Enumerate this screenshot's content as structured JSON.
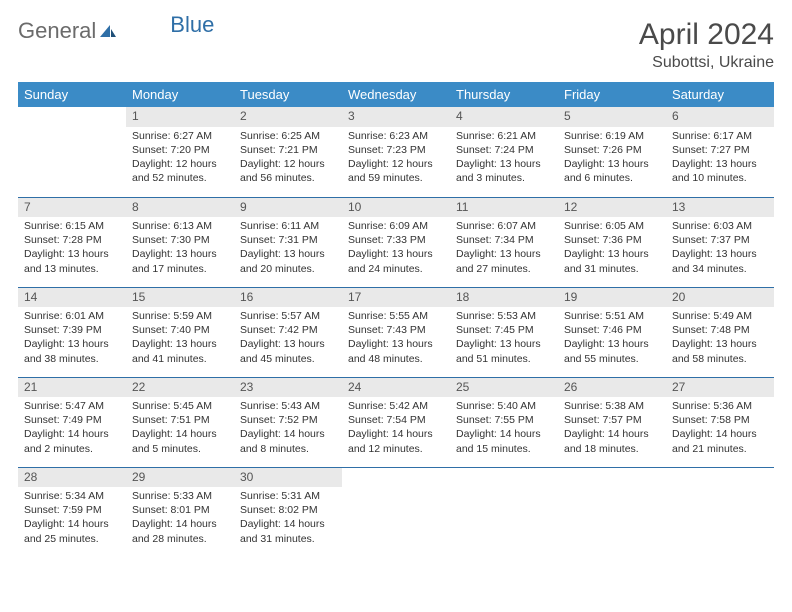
{
  "brand": {
    "word1": "General",
    "word2": "Blue"
  },
  "header": {
    "title": "April 2024",
    "location": "Subottsi, Ukraine"
  },
  "style": {
    "header_bg": "#3b8bc6",
    "header_text": "#ffffff",
    "row_divider": "#2f6fa7",
    "daynum_bg": "#e9e9e9",
    "body_text": "#333333",
    "title_color": "#4a4a4a",
    "logo_gray": "#6b6b6b",
    "logo_blue": "#2f6fa7",
    "title_fontsize": 30,
    "subtitle_fontsize": 16,
    "dayhead_fontsize": 13,
    "daynum_fontsize": 12,
    "cell_fontsize": 10.5
  },
  "weekdays": [
    "Sunday",
    "Monday",
    "Tuesday",
    "Wednesday",
    "Thursday",
    "Friday",
    "Saturday"
  ],
  "weeks": [
    [
      {
        "n": "",
        "lines": []
      },
      {
        "n": "1",
        "lines": [
          "Sunrise: 6:27 AM",
          "Sunset: 7:20 PM",
          "Daylight: 12 hours",
          "and 52 minutes."
        ]
      },
      {
        "n": "2",
        "lines": [
          "Sunrise: 6:25 AM",
          "Sunset: 7:21 PM",
          "Daylight: 12 hours",
          "and 56 minutes."
        ]
      },
      {
        "n": "3",
        "lines": [
          "Sunrise: 6:23 AM",
          "Sunset: 7:23 PM",
          "Daylight: 12 hours",
          "and 59 minutes."
        ]
      },
      {
        "n": "4",
        "lines": [
          "Sunrise: 6:21 AM",
          "Sunset: 7:24 PM",
          "Daylight: 13 hours",
          "and 3 minutes."
        ]
      },
      {
        "n": "5",
        "lines": [
          "Sunrise: 6:19 AM",
          "Sunset: 7:26 PM",
          "Daylight: 13 hours",
          "and 6 minutes."
        ]
      },
      {
        "n": "6",
        "lines": [
          "Sunrise: 6:17 AM",
          "Sunset: 7:27 PM",
          "Daylight: 13 hours",
          "and 10 minutes."
        ]
      }
    ],
    [
      {
        "n": "7",
        "lines": [
          "Sunrise: 6:15 AM",
          "Sunset: 7:28 PM",
          "Daylight: 13 hours",
          "and 13 minutes."
        ]
      },
      {
        "n": "8",
        "lines": [
          "Sunrise: 6:13 AM",
          "Sunset: 7:30 PM",
          "Daylight: 13 hours",
          "and 17 minutes."
        ]
      },
      {
        "n": "9",
        "lines": [
          "Sunrise: 6:11 AM",
          "Sunset: 7:31 PM",
          "Daylight: 13 hours",
          "and 20 minutes."
        ]
      },
      {
        "n": "10",
        "lines": [
          "Sunrise: 6:09 AM",
          "Sunset: 7:33 PM",
          "Daylight: 13 hours",
          "and 24 minutes."
        ]
      },
      {
        "n": "11",
        "lines": [
          "Sunrise: 6:07 AM",
          "Sunset: 7:34 PM",
          "Daylight: 13 hours",
          "and 27 minutes."
        ]
      },
      {
        "n": "12",
        "lines": [
          "Sunrise: 6:05 AM",
          "Sunset: 7:36 PM",
          "Daylight: 13 hours",
          "and 31 minutes."
        ]
      },
      {
        "n": "13",
        "lines": [
          "Sunrise: 6:03 AM",
          "Sunset: 7:37 PM",
          "Daylight: 13 hours",
          "and 34 minutes."
        ]
      }
    ],
    [
      {
        "n": "14",
        "lines": [
          "Sunrise: 6:01 AM",
          "Sunset: 7:39 PM",
          "Daylight: 13 hours",
          "and 38 minutes."
        ]
      },
      {
        "n": "15",
        "lines": [
          "Sunrise: 5:59 AM",
          "Sunset: 7:40 PM",
          "Daylight: 13 hours",
          "and 41 minutes."
        ]
      },
      {
        "n": "16",
        "lines": [
          "Sunrise: 5:57 AM",
          "Sunset: 7:42 PM",
          "Daylight: 13 hours",
          "and 45 minutes."
        ]
      },
      {
        "n": "17",
        "lines": [
          "Sunrise: 5:55 AM",
          "Sunset: 7:43 PM",
          "Daylight: 13 hours",
          "and 48 minutes."
        ]
      },
      {
        "n": "18",
        "lines": [
          "Sunrise: 5:53 AM",
          "Sunset: 7:45 PM",
          "Daylight: 13 hours",
          "and 51 minutes."
        ]
      },
      {
        "n": "19",
        "lines": [
          "Sunrise: 5:51 AM",
          "Sunset: 7:46 PM",
          "Daylight: 13 hours",
          "and 55 minutes."
        ]
      },
      {
        "n": "20",
        "lines": [
          "Sunrise: 5:49 AM",
          "Sunset: 7:48 PM",
          "Daylight: 13 hours",
          "and 58 minutes."
        ]
      }
    ],
    [
      {
        "n": "21",
        "lines": [
          "Sunrise: 5:47 AM",
          "Sunset: 7:49 PM",
          "Daylight: 14 hours",
          "and 2 minutes."
        ]
      },
      {
        "n": "22",
        "lines": [
          "Sunrise: 5:45 AM",
          "Sunset: 7:51 PM",
          "Daylight: 14 hours",
          "and 5 minutes."
        ]
      },
      {
        "n": "23",
        "lines": [
          "Sunrise: 5:43 AM",
          "Sunset: 7:52 PM",
          "Daylight: 14 hours",
          "and 8 minutes."
        ]
      },
      {
        "n": "24",
        "lines": [
          "Sunrise: 5:42 AM",
          "Sunset: 7:54 PM",
          "Daylight: 14 hours",
          "and 12 minutes."
        ]
      },
      {
        "n": "25",
        "lines": [
          "Sunrise: 5:40 AM",
          "Sunset: 7:55 PM",
          "Daylight: 14 hours",
          "and 15 minutes."
        ]
      },
      {
        "n": "26",
        "lines": [
          "Sunrise: 5:38 AM",
          "Sunset: 7:57 PM",
          "Daylight: 14 hours",
          "and 18 minutes."
        ]
      },
      {
        "n": "27",
        "lines": [
          "Sunrise: 5:36 AM",
          "Sunset: 7:58 PM",
          "Daylight: 14 hours",
          "and 21 minutes."
        ]
      }
    ],
    [
      {
        "n": "28",
        "lines": [
          "Sunrise: 5:34 AM",
          "Sunset: 7:59 PM",
          "Daylight: 14 hours",
          "and 25 minutes."
        ]
      },
      {
        "n": "29",
        "lines": [
          "Sunrise: 5:33 AM",
          "Sunset: 8:01 PM",
          "Daylight: 14 hours",
          "and 28 minutes."
        ]
      },
      {
        "n": "30",
        "lines": [
          "Sunrise: 5:31 AM",
          "Sunset: 8:02 PM",
          "Daylight: 14 hours",
          "and 31 minutes."
        ]
      },
      {
        "n": "",
        "lines": []
      },
      {
        "n": "",
        "lines": []
      },
      {
        "n": "",
        "lines": []
      },
      {
        "n": "",
        "lines": []
      }
    ]
  ]
}
